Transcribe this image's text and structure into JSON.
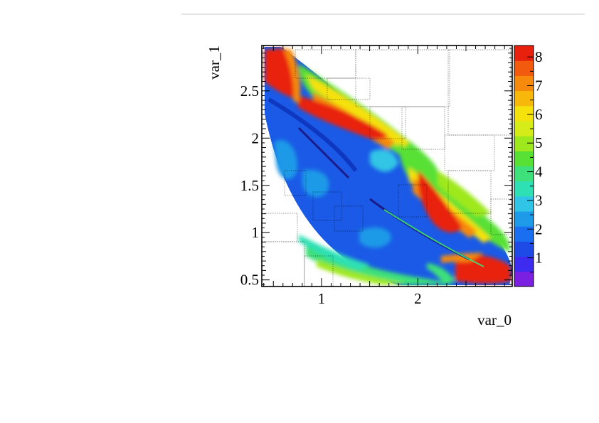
{
  "chart_data": {
    "type": "heatmap",
    "title": "",
    "xlabel": "var_0",
    "ylabel": "var_1",
    "xlim": [
      0.38,
      2.98
    ],
    "ylim": [
      0.43,
      2.98
    ],
    "x_ticks": [
      1,
      2
    ],
    "y_ticks": [
      0.5,
      1,
      1.5,
      2,
      2.5
    ],
    "y_tick_labels": [
      "0.5",
      "1",
      "1.5",
      "2",
      "2.5"
    ],
    "x_tick_labels": [
      "1",
      "2"
    ],
    "z_range": [
      0,
      8.4
    ],
    "z_ticks": [
      1,
      2,
      3,
      4,
      5,
      6,
      7,
      8
    ],
    "z_tick_labels": [
      "1",
      "2",
      "3",
      "4",
      "5",
      "6",
      "7",
      "8"
    ],
    "palette": [
      "#7b1fe0",
      "#3d2cf0",
      "#1e4be6",
      "#1a6ff0",
      "#1d9ae8",
      "#30c5e6",
      "#2fe0b4",
      "#3de07a",
      "#59e034",
      "#9ee81e",
      "#d6ec18",
      "#f5e10c",
      "#f7b80a",
      "#f58a0c",
      "#f25a0e",
      "#e8210f"
    ],
    "grid": false,
    "regions": [
      {
        "shape": "band",
        "label": "top-left red lobe",
        "x": [
          0.45,
          1.05
        ],
        "y": [
          2.35,
          2.95
        ],
        "value": 8.2
      },
      {
        "shape": "band",
        "label": "upper-right red ridge",
        "x": [
          1.05,
          1.9
        ],
        "y": [
          1.9,
          2.35
        ],
        "value": 8.0
      },
      {
        "shape": "band",
        "label": "right red ridge",
        "x": [
          1.95,
          2.55
        ],
        "y": [
          0.85,
          1.75
        ],
        "value": 8.0
      },
      {
        "shape": "band",
        "label": "bottom-right red lobe",
        "x": [
          2.4,
          2.95
        ],
        "y": [
          0.45,
          0.85
        ],
        "value": 8.3
      },
      {
        "shape": "band",
        "label": "left blue region",
        "x": [
          0.4,
          1.3
        ],
        "y": [
          0.75,
          2.3
        ],
        "value": 1.2
      },
      {
        "shape": "band",
        "label": "central blue region",
        "x": [
          1.2,
          2.3
        ],
        "y": [
          0.5,
          1.5
        ],
        "value": 1.0
      },
      {
        "shape": "band",
        "label": "lower green band",
        "x": [
          0.9,
          2.5
        ],
        "y": [
          0.45,
          0.75
        ],
        "value": 4.0
      },
      {
        "shape": "band",
        "label": "upper green band",
        "x": [
          1.3,
          2.0
        ],
        "y": [
          1.75,
          2.1
        ],
        "value": 4.5
      }
    ]
  }
}
